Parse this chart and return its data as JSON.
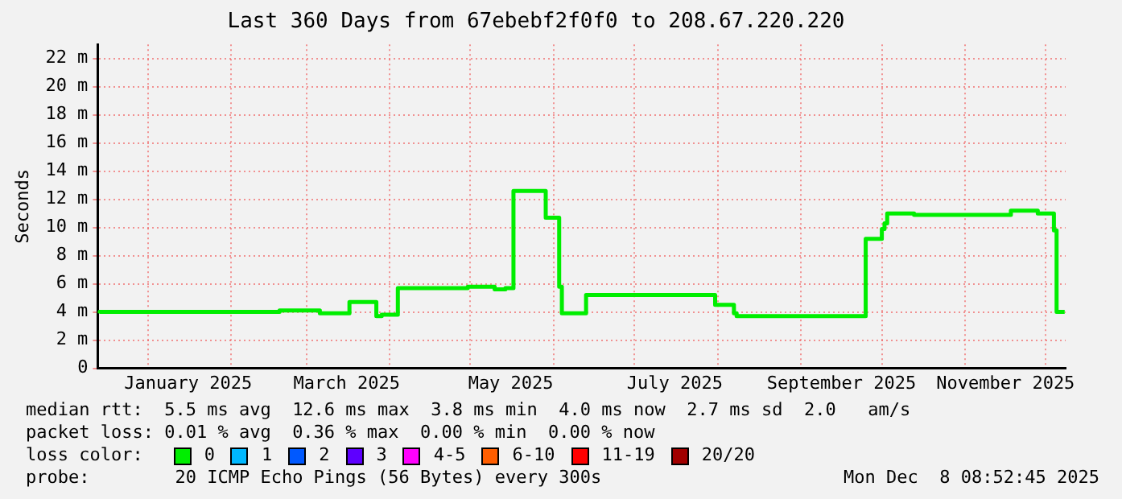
{
  "chart_data": {
    "type": "step",
    "title": "Last 360 Days from 67ebebf2f0f0 to 208.67.220.220",
    "ylabel": "Seconds",
    "legend_title": "loss color:",
    "annotations": [
      "median rtt:  5.5 ms avg  12.6 ms max  3.8 ms min  4.0 ms now  2.7 ms sd  2.0   am/s",
      "packet loss: 0.01 % avg  0.36 % max  0.00 % min  0.00 % now",
      "probe:        20 ICMP Echo Pings (56 Bytes) every 300s",
      "Mon Dec  8 08:52:45 2025"
    ],
    "x": [
      "2024-12-14",
      "2025-02-19",
      "2025-03-06",
      "2025-03-17",
      "2025-03-27",
      "2025-03-29",
      "2025-04-04",
      "2025-04-30",
      "2025-05-10",
      "2025-05-14",
      "2025-05-17",
      "2025-05-29",
      "2025-06-03",
      "2025-06-04",
      "2025-06-13",
      "2025-07-31",
      "2025-08-07",
      "2025-08-08",
      "2025-09-25",
      "2025-10-01",
      "2025-10-02",
      "2025-10-03",
      "2025-10-13",
      "2025-10-31",
      "2025-11-18",
      "2025-11-28",
      "2025-12-04",
      "2025-12-05",
      "2025-12-06",
      "2025-12-08"
    ],
    "series": [
      {
        "name": "0",
        "color": "#00ee00",
        "values": [
          3.9,
          4.0,
          4.1,
          3.9,
          4.7,
          3.7,
          3.8,
          5.7,
          5.8,
          5.6,
          5.7,
          12.6,
          10.7,
          5.8,
          3.9,
          5.2,
          4.5,
          3.9,
          3.7,
          9.2,
          9.9,
          10.3,
          11.0,
          10.9,
          10.9,
          11.2,
          11.0,
          9.8,
          4.0,
          4.0
        ]
      },
      {
        "name": "1",
        "color": "#00b8ff",
        "values": [
          null,
          null,
          null,
          null,
          null,
          null,
          null,
          null,
          null,
          null,
          null,
          null,
          null,
          null,
          null,
          null,
          null,
          null,
          null,
          null,
          null,
          null,
          null,
          null,
          null,
          null,
          null,
          null,
          null,
          null
        ]
      },
      {
        "name": "2",
        "color": "#0059ff",
        "values": [
          null,
          null,
          null,
          null,
          null,
          null,
          null,
          null,
          null,
          null,
          null,
          null,
          null,
          null,
          null,
          null,
          null,
          null,
          null,
          null,
          null,
          null,
          null,
          null,
          null,
          null,
          null,
          null,
          null,
          null
        ]
      },
      {
        "name": "3",
        "color": "#5e00ff",
        "values": [
          null,
          null,
          null,
          null,
          null,
          null,
          null,
          null,
          null,
          null,
          null,
          null,
          null,
          null,
          null,
          null,
          null,
          null,
          null,
          null,
          null,
          null,
          null,
          null,
          null,
          null,
          null,
          null,
          null,
          null
        ]
      },
      {
        "name": "4-5",
        "color": "#ff00fe",
        "values": [
          null,
          null,
          null,
          null,
          null,
          null,
          null,
          null,
          null,
          null,
          null,
          null,
          null,
          null,
          null,
          null,
          null,
          null,
          null,
          null,
          null,
          null,
          null,
          null,
          null,
          null,
          null,
          null,
          null,
          null
        ]
      },
      {
        "name": "6-10",
        "color": "#ff5e00",
        "values": [
          null,
          null,
          null,
          null,
          null,
          null,
          null,
          null,
          null,
          null,
          null,
          null,
          null,
          null,
          null,
          null,
          null,
          null,
          null,
          null,
          null,
          null,
          null,
          null,
          null,
          null,
          null,
          null,
          null,
          null
        ]
      },
      {
        "name": "11-19",
        "color": "#ff0000",
        "values": [
          null,
          null,
          null,
          null,
          null,
          null,
          null,
          null,
          null,
          null,
          null,
          null,
          null,
          null,
          null,
          null,
          null,
          null,
          null,
          null,
          null,
          null,
          null,
          null,
          null,
          null,
          null,
          null,
          null,
          null
        ]
      },
      {
        "name": "20/20",
        "color": "#a10000",
        "values": [
          null,
          null,
          null,
          null,
          null,
          null,
          null,
          null,
          null,
          null,
          null,
          null,
          null,
          null,
          null,
          null,
          null,
          null,
          null,
          null,
          null,
          null,
          null,
          null,
          null,
          null,
          null,
          null,
          null,
          null
        ]
      }
    ],
    "xlim": [
      "2024-12-13T08:52",
      "2025-12-08T08:52"
    ],
    "xticks": [
      {
        "value": "2025-01-01",
        "label": null
      },
      {
        "value": "2025-01-16",
        "label": "January 2025"
      },
      {
        "value": "2025-02-01",
        "label": null
      },
      {
        "value": "2025-03-01",
        "label": null
      },
      {
        "value": "2025-03-16",
        "label": "March 2025"
      },
      {
        "value": "2025-04-01",
        "label": null
      },
      {
        "value": "2025-05-01",
        "label": null
      },
      {
        "value": "2025-05-16",
        "label": "May 2025"
      },
      {
        "value": "2025-06-01",
        "label": null
      },
      {
        "value": "2025-07-01",
        "label": null
      },
      {
        "value": "2025-07-16",
        "label": "July 2025"
      },
      {
        "value": "2025-08-01",
        "label": null
      },
      {
        "value": "2025-09-01",
        "label": null
      },
      {
        "value": "2025-09-16",
        "label": "September 2025"
      },
      {
        "value": "2025-10-01",
        "label": null
      },
      {
        "value": "2025-11-01",
        "label": null
      },
      {
        "value": "2025-11-16",
        "label": "November 2025"
      },
      {
        "value": "2025-12-01",
        "label": null
      }
    ],
    "ylim": [
      0,
      23
    ],
    "yticks": [
      0,
      {
        "value": 2,
        "label": "2 m"
      },
      {
        "value": 4,
        "label": "4 m"
      },
      {
        "value": 6,
        "label": "6 m"
      },
      {
        "value": 8,
        "label": "8 m"
      },
      {
        "value": 10,
        "label": "10 m"
      },
      {
        "value": 12,
        "label": "12 m"
      },
      {
        "value": 14,
        "label": "14 m"
      },
      {
        "value": 16,
        "label": "16 m"
      },
      {
        "value": 18,
        "label": "18 m"
      },
      {
        "value": 20,
        "label": "20 m"
      },
      {
        "value": 22,
        "label": "22 m"
      }
    ],
    "grid": true,
    "legend": "bottom",
    "marker": "none",
    "line_style": "solid"
  }
}
